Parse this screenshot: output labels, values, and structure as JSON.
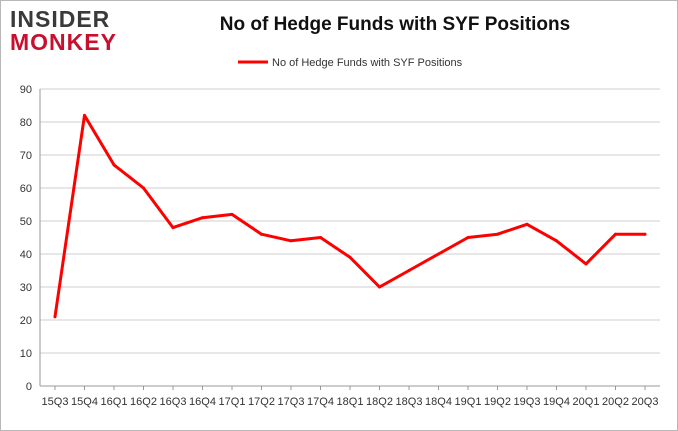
{
  "header": {
    "logo_line1": "INSIDER",
    "logo_line2": "MONKEY",
    "title": "No of Hedge Funds with SYF Positions"
  },
  "colors": {
    "series": "#ff0000",
    "grid": "#cfcfcf",
    "axis": "#999999",
    "logo_dark": "#3a3a3a",
    "logo_red": "#c8102e"
  },
  "chart_data": {
    "type": "line",
    "title": "No of Hedge Funds with SYF Positions",
    "xlabel": "",
    "ylabel": "",
    "categories": [
      "15Q3",
      "15Q4",
      "16Q1",
      "16Q2",
      "16Q3",
      "16Q4",
      "17Q1",
      "17Q2",
      "17Q3",
      "17Q4",
      "18Q1",
      "18Q2",
      "18Q3",
      "18Q4",
      "19Q1",
      "19Q2",
      "19Q3",
      "19Q4",
      "20Q1",
      "20Q2",
      "20Q3"
    ],
    "series": [
      {
        "name": "No of Hedge Funds with SYF Positions",
        "values": [
          21,
          82,
          67,
          60,
          48,
          51,
          52,
          46,
          44,
          45,
          39,
          30,
          35,
          40,
          45,
          46,
          49,
          44,
          37,
          46,
          46
        ]
      }
    ],
    "ylim": [
      0,
      90
    ],
    "yticks": [
      0,
      10,
      20,
      30,
      40,
      50,
      60,
      70,
      80,
      90
    ],
    "grid": true,
    "legend": "top-center"
  }
}
